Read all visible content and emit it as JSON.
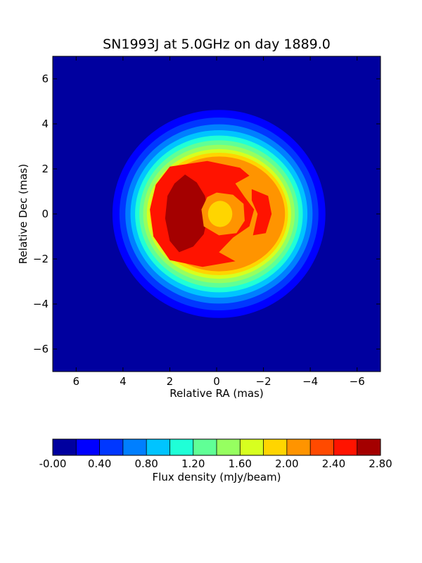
{
  "chart_data": {
    "type": "heatmap",
    "subtype": "filled-contour",
    "title": "SN1993J at 5.0GHz on day 1889.0",
    "xlabel": "Relative RA (mas)",
    "ylabel": "Relative Dec (mas)",
    "xlim": [
      7,
      -7
    ],
    "ylim": [
      -7,
      7
    ],
    "x_inverted": true,
    "xticks": [
      6,
      4,
      2,
      0,
      -2,
      -4,
      -6
    ],
    "yticks": [
      6,
      4,
      2,
      0,
      -2,
      -4,
      -6
    ],
    "colorbar": {
      "label": "Flux density (mJy/beam)",
      "levels": [
        0.0,
        0.2,
        0.4,
        0.6,
        0.8,
        1.0,
        1.2,
        1.4,
        1.6,
        1.8,
        2.0,
        2.2,
        2.4,
        2.6,
        2.8
      ],
      "tick_values": [
        0.0,
        0.4,
        0.8,
        1.2,
        1.6,
        2.0,
        2.4,
        2.8
      ],
      "tick_labels": [
        "-0.00",
        "0.40",
        "0.80",
        "1.20",
        "1.60",
        "2.00",
        "2.40",
        "2.80"
      ],
      "colors": [
        "#00009f",
        "#0000ff",
        "#0037ff",
        "#007fff",
        "#00c4ff",
        "#1fffd7",
        "#60ff96",
        "#96ff60",
        "#d7ff1f",
        "#ffd500",
        "#ff9400",
        "#ff4a00",
        "#ff1300",
        "#a40000"
      ]
    },
    "source": {
      "center": [
        -0.1,
        0.0
      ],
      "description": "shell-like radio source; flux peaks (~2.7 mJy/beam) on the east rim near RA 1.9 mas, secondary maximum on the west rim near RA -2.0 mas, central depression near 2.0 mJy/beam"
    }
  }
}
